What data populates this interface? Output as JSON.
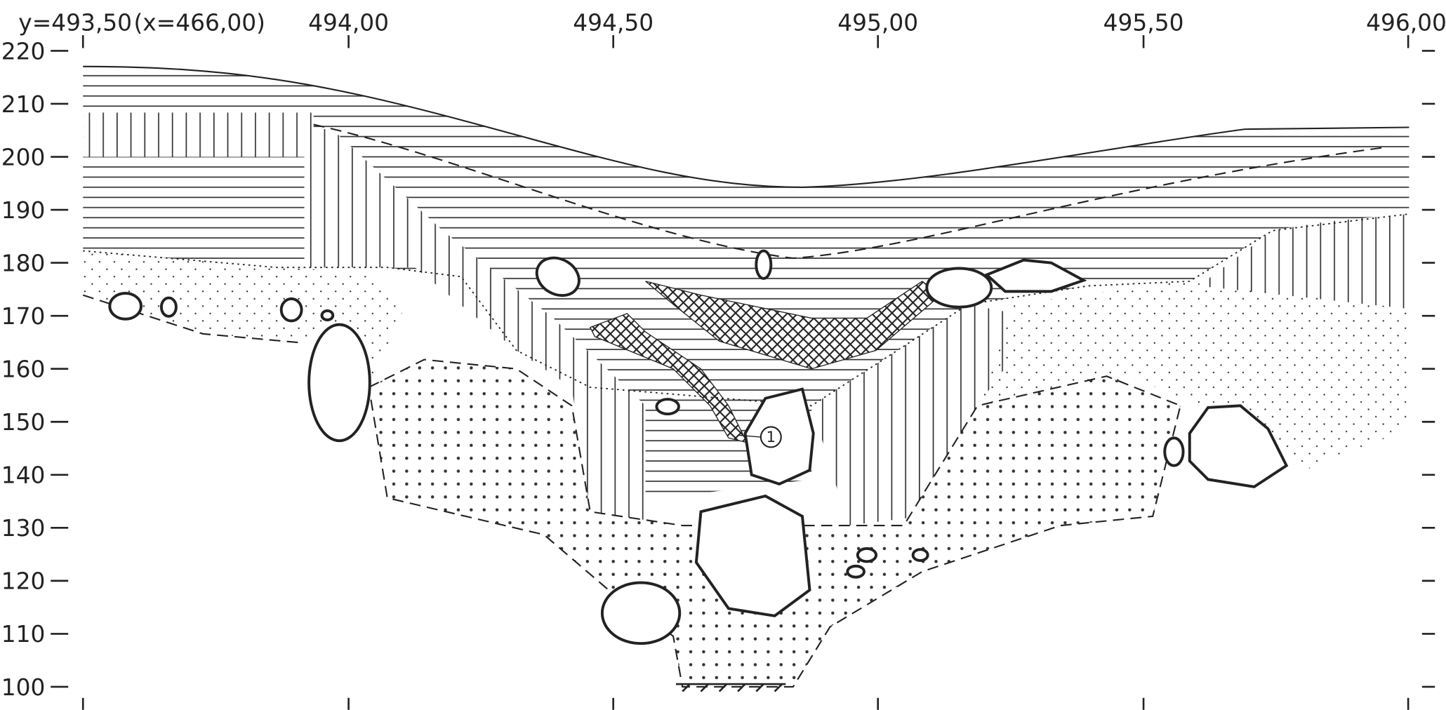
{
  "axis": {
    "top_labels": [
      "y=493,50",
      "(x=466,00)",
      "494,00",
      "494,50",
      "495,00",
      "495,50",
      "496,00"
    ],
    "left_labels": [
      220,
      210,
      200,
      190,
      180,
      170,
      160,
      150,
      140,
      130,
      120,
      110,
      100
    ]
  },
  "annotations": [
    {
      "label": "1"
    }
  ]
}
